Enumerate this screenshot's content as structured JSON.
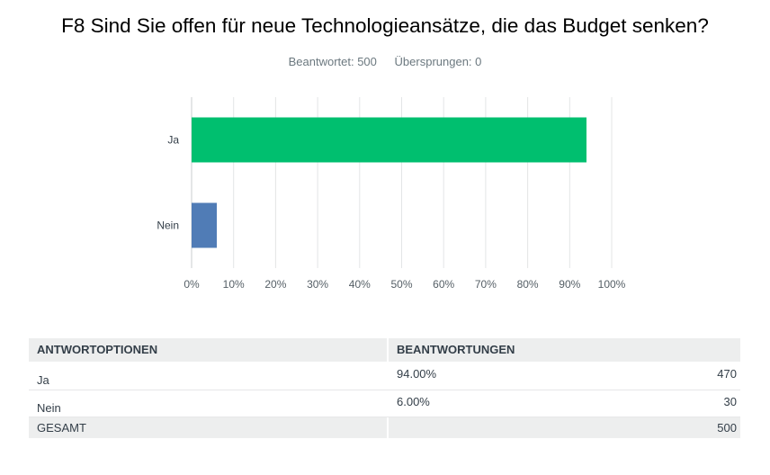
{
  "question": {
    "title": "F8 Sind Sie offen für neue Technologieansätze, die das Budget senken?",
    "answered_label": "Beantwortet: 500",
    "skipped_label": "Übersprungen: 0"
  },
  "chart_data": {
    "type": "bar",
    "orientation": "horizontal",
    "categories": [
      "Ja",
      "Nein"
    ],
    "values": [
      94.0,
      6.0
    ],
    "colors": [
      "#00bf6f",
      "#507cb6"
    ],
    "xlim": [
      0,
      100
    ],
    "xticks": [
      "0%",
      "10%",
      "20%",
      "30%",
      "40%",
      "50%",
      "60%",
      "70%",
      "80%",
      "90%",
      "100%"
    ],
    "grid": true
  },
  "table": {
    "headers": [
      "ANTWORTOPTIONEN",
      "BEANTWORTUNGEN"
    ],
    "rows": [
      {
        "option": "Ja",
        "percent": "94.00%",
        "count": "470"
      },
      {
        "option": "Nein",
        "percent": "6.00%",
        "count": "30"
      }
    ],
    "total_label": "GESAMT",
    "total_count": "500"
  }
}
